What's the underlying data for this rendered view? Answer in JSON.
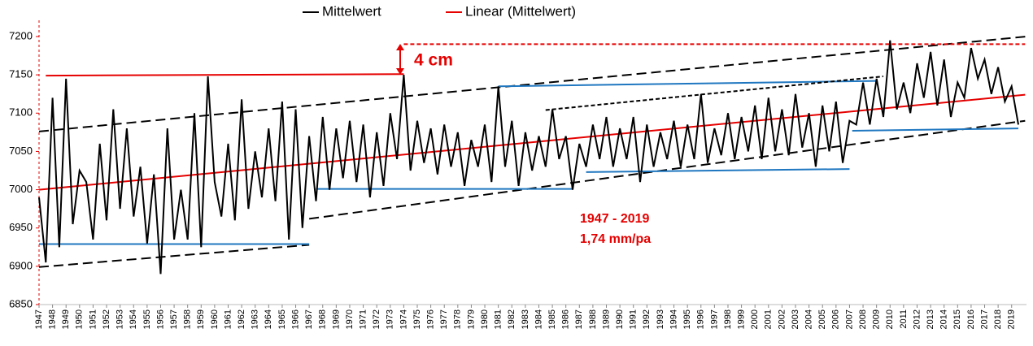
{
  "chart_data": {
    "type": "line",
    "legend": [
      "Mittelwert",
      "Linear (Mittelwert)"
    ],
    "legend_colors": [
      "#000000",
      "#e60000"
    ],
    "annotations": [
      "4 cm",
      "1947 - 2019",
      "1,74 mm/pa"
    ],
    "xlim": [
      1947,
      2020.1
    ],
    "ylim": [
      6850,
      7200
    ],
    "yticks": [
      6850,
      6900,
      6950,
      7000,
      7050,
      7100,
      7150,
      7200
    ],
    "xticks": [
      1947,
      1948,
      1949,
      1950,
      1951,
      1952,
      1953,
      1954,
      1955,
      1956,
      1957,
      1958,
      1959,
      1960,
      1961,
      1962,
      1963,
      1964,
      1965,
      1966,
      1967,
      1968,
      1969,
      1970,
      1971,
      1972,
      1973,
      1974,
      1975,
      1976,
      1977,
      1978,
      1979,
      1980,
      1981,
      1982,
      1983,
      1984,
      1985,
      1986,
      1987,
      1988,
      1989,
      1990,
      1991,
      1992,
      1993,
      1994,
      1995,
      1996,
      1997,
      1998,
      1999,
      2000,
      2001,
      2002,
      2003,
      2004,
      2005,
      2006,
      2007,
      2008,
      2009,
      2010,
      2011,
      2012,
      2013,
      2014,
      2015,
      2016,
      2017,
      2018,
      2019
    ],
    "series": [
      {
        "name": "Mittelwert",
        "color": "#000000",
        "x": [
          1947,
          1947.5,
          1948,
          1948.5,
          1949,
          1949.5,
          1950,
          1950.5,
          1951,
          1951.5,
          1952,
          1952.5,
          1953,
          1953.5,
          1954,
          1954.5,
          1955,
          1955.5,
          1956,
          1956.5,
          1957,
          1957.5,
          1958,
          1958.5,
          1959,
          1959.5,
          1960,
          1960.5,
          1961,
          1961.5,
          1962,
          1962.5,
          1963,
          1963.5,
          1964,
          1964.5,
          1965,
          1965.5,
          1966,
          1966.5,
          1967,
          1967.5,
          1968,
          1968.5,
          1969,
          1969.5,
          1970,
          1970.5,
          1971,
          1971.5,
          1972,
          1972.5,
          1973,
          1973.5,
          1974,
          1974.5,
          1975,
          1975.5,
          1976,
          1976.5,
          1977,
          1977.5,
          1978,
          1978.5,
          1979,
          1979.5,
          1980,
          1980.5,
          1981,
          1981.5,
          1982,
          1982.5,
          1983,
          1983.5,
          1984,
          1984.5,
          1985,
          1985.5,
          1986,
          1986.5,
          1987,
          1987.5,
          1988,
          1988.5,
          1989,
          1989.5,
          1990,
          1990.5,
          1991,
          1991.5,
          1992,
          1992.5,
          1993,
          1993.5,
          1994,
          1994.5,
          1995,
          1995.5,
          1996,
          1996.5,
          1997,
          1997.5,
          1998,
          1998.5,
          1999,
          1999.5,
          2000,
          2000.5,
          2001,
          2001.5,
          2002,
          2002.5,
          2003,
          2003.5,
          2004,
          2004.5,
          2005,
          2005.5,
          2006,
          2006.5,
          2007,
          2007.5,
          2008,
          2008.5,
          2009,
          2009.5,
          2010,
          2010.5,
          2011,
          2011.5,
          2012,
          2012.5,
          2013,
          2013.5,
          2014,
          2014.5,
          2015,
          2015.5,
          2016,
          2016.5,
          2017,
          2017.5,
          2018,
          2018.5,
          2019,
          2019.5
        ],
        "values": [
          6990,
          6905,
          7120,
          6925,
          7145,
          6955,
          7025,
          7010,
          6935,
          7060,
          6960,
          7105,
          6975,
          7080,
          6965,
          7030,
          6930,
          7020,
          6890,
          7080,
          6935,
          7000,
          6935,
          7100,
          6925,
          7148,
          7010,
          6965,
          7060,
          6960,
          7118,
          6975,
          7050,
          6990,
          7080,
          6985,
          7115,
          6935,
          7105,
          6950,
          7070,
          6985,
          7095,
          7000,
          7080,
          7015,
          7090,
          7010,
          7085,
          6990,
          7075,
          7005,
          7100,
          7040,
          7150,
          7025,
          7090,
          7035,
          7080,
          7020,
          7085,
          7030,
          7075,
          7005,
          7065,
          7030,
          7085,
          7010,
          7135,
          7030,
          7090,
          7005,
          7075,
          7025,
          7070,
          7030,
          7105,
          7040,
          7070,
          7000,
          7060,
          7030,
          7085,
          7040,
          7095,
          7030,
          7080,
          7040,
          7095,
          7010,
          7085,
          7030,
          7075,
          7040,
          7090,
          7030,
          7085,
          7040,
          7125,
          7035,
          7080,
          7045,
          7100,
          7040,
          7095,
          7050,
          7110,
          7040,
          7120,
          7050,
          7105,
          7045,
          7125,
          7055,
          7100,
          7030,
          7110,
          7050,
          7115,
          7035,
          7090,
          7085,
          7140,
          7085,
          7145,
          7095,
          7195,
          7105,
          7140,
          7100,
          7165,
          7120,
          7180,
          7110,
          7170,
          7095,
          7140,
          7120,
          7185,
          7145,
          7170,
          7125,
          7160,
          7115,
          7135,
          7085
        ]
      }
    ],
    "reference_lines": [
      {
        "x": [
          1947,
          2020
        ],
        "y": [
          7000,
          7124
        ],
        "color": "#e60000",
        "dashed": false
      },
      {
        "x": [
          1947,
          2020.1
        ],
        "y": [
          7076,
          7200
        ],
        "color": "#000000",
        "dashed": true
      },
      {
        "x": [
          1947,
          1967
        ],
        "y": [
          6899,
          6928
        ],
        "color": "#000000",
        "dashed": true
      },
      {
        "x": [
          1967,
          2020
        ],
        "y": [
          6962,
          7090
        ],
        "color": "#000000",
        "dashed": true
      },
      {
        "x": [
          1947,
          1967
        ],
        "y": [
          6929,
          6929
        ],
        "color": "#1f77c0",
        "dashed": false
      },
      {
        "x": [
          1967.5,
          1986.5
        ],
        "y": [
          7001,
          7001
        ],
        "color": "#1f77c0",
        "dashed": false
      },
      {
        "x": [
          1987.5,
          2007
        ],
        "y": [
          7023,
          7027
        ],
        "color": "#1f77c0",
        "dashed": false
      },
      {
        "x": [
          2007.2,
          2019.5
        ],
        "y": [
          7077,
          7080
        ],
        "color": "#1f77c0",
        "dashed": false
      },
      {
        "x": [
          1981,
          2009
        ],
        "y": [
          7135,
          7142
        ],
        "color": "#1f77c0",
        "dashed": false
      },
      {
        "x": [
          1947.5,
          1974
        ],
        "y": [
          7149,
          7151
        ],
        "color": "#e60000",
        "dashed": false
      },
      {
        "x": [
          1974,
          2020
        ],
        "y": [
          7190,
          7190
        ],
        "color": "#e60000",
        "dashed": true
      },
      {
        "x": [
          1984.5,
          2009.5
        ],
        "y": [
          7104,
          7148
        ],
        "color": "#000000",
        "dashed": true
      }
    ]
  }
}
